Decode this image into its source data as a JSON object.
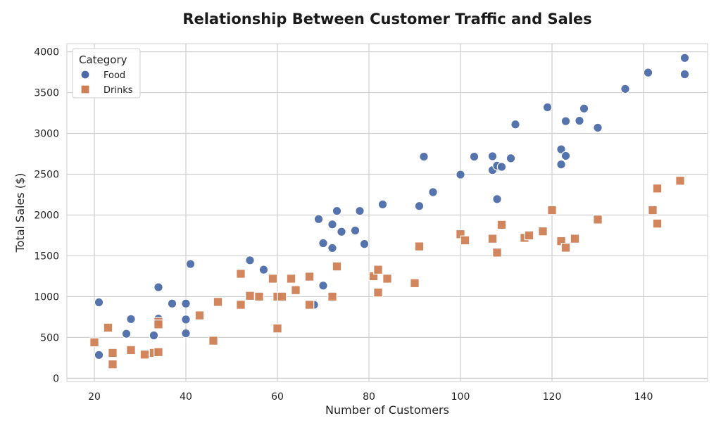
{
  "chart_data": {
    "type": "scatter",
    "title": "Relationship Between Customer Traffic and Sales",
    "xlabel": "Number of Customers",
    "ylabel": "Total Sales ($)",
    "xlim": [
      14,
      154
    ],
    "ylim": [
      -40,
      4100
    ],
    "xticks": [
      20,
      40,
      60,
      80,
      100,
      120,
      140
    ],
    "yticks": [
      0,
      500,
      1000,
      1500,
      2000,
      2500,
      3000,
      3500,
      4000
    ],
    "grid": true,
    "legend": {
      "title": "Category",
      "position": "top-left"
    },
    "series": [
      {
        "name": "Food",
        "marker": "circle",
        "color": "#4c6ba8",
        "points": [
          [
            21,
            930
          ],
          [
            21,
            285
          ],
          [
            27,
            545
          ],
          [
            28,
            725
          ],
          [
            33,
            525
          ],
          [
            34,
            1115
          ],
          [
            34,
            730
          ],
          [
            37,
            915
          ],
          [
            40,
            915
          ],
          [
            40,
            720
          ],
          [
            40,
            550
          ],
          [
            41,
            1400
          ],
          [
            54,
            1445
          ],
          [
            57,
            1330
          ],
          [
            68,
            900
          ],
          [
            69,
            1950
          ],
          [
            70,
            1655
          ],
          [
            70,
            1135
          ],
          [
            72,
            1885
          ],
          [
            72,
            1595
          ],
          [
            73,
            2050
          ],
          [
            74,
            1795
          ],
          [
            77,
            1810
          ],
          [
            78,
            2050
          ],
          [
            79,
            1645
          ],
          [
            83,
            2130
          ],
          [
            91,
            2110
          ],
          [
            92,
            2715
          ],
          [
            94,
            2280
          ],
          [
            100,
            2495
          ],
          [
            103,
            2715
          ],
          [
            107,
            2720
          ],
          [
            107,
            2550
          ],
          [
            108,
            2605
          ],
          [
            108,
            2195
          ],
          [
            109,
            2590
          ],
          [
            111,
            2695
          ],
          [
            112,
            3110
          ],
          [
            119,
            3320
          ],
          [
            122,
            2805
          ],
          [
            122,
            2620
          ],
          [
            123,
            3150
          ],
          [
            123,
            2725
          ],
          [
            126,
            3155
          ],
          [
            127,
            3305
          ],
          [
            130,
            3070
          ],
          [
            136,
            3545
          ],
          [
            141,
            3745
          ],
          [
            149,
            3925
          ],
          [
            149,
            3725
          ]
        ]
      },
      {
        "name": "Drinks",
        "marker": "square",
        "color": "#cf7f55",
        "points": [
          [
            20,
            440
          ],
          [
            23,
            620
          ],
          [
            24,
            310
          ],
          [
            24,
            170
          ],
          [
            28,
            345
          ],
          [
            31,
            290
          ],
          [
            33,
            310
          ],
          [
            34,
            690
          ],
          [
            34,
            660
          ],
          [
            34,
            320
          ],
          [
            43,
            770
          ],
          [
            46,
            460
          ],
          [
            47,
            935
          ],
          [
            52,
            1280
          ],
          [
            52,
            900
          ],
          [
            54,
            1010
          ],
          [
            56,
            1000
          ],
          [
            59,
            1220
          ],
          [
            60,
            1000
          ],
          [
            60,
            610
          ],
          [
            61,
            1000
          ],
          [
            63,
            1220
          ],
          [
            64,
            1080
          ],
          [
            67,
            1245
          ],
          [
            67,
            900
          ],
          [
            72,
            1000
          ],
          [
            73,
            1370
          ],
          [
            81,
            1250
          ],
          [
            82,
            1330
          ],
          [
            82,
            1050
          ],
          [
            84,
            1220
          ],
          [
            90,
            1165
          ],
          [
            91,
            1615
          ],
          [
            100,
            1765
          ],
          [
            101,
            1690
          ],
          [
            107,
            1710
          ],
          [
            108,
            1540
          ],
          [
            109,
            1880
          ],
          [
            114,
            1720
          ],
          [
            115,
            1750
          ],
          [
            118,
            1800
          ],
          [
            120,
            2060
          ],
          [
            122,
            1680
          ],
          [
            123,
            1600
          ],
          [
            125,
            1710
          ],
          [
            130,
            1945
          ],
          [
            142,
            2060
          ],
          [
            143,
            2325
          ],
          [
            143,
            1895
          ],
          [
            148,
            2420
          ]
        ]
      }
    ]
  }
}
